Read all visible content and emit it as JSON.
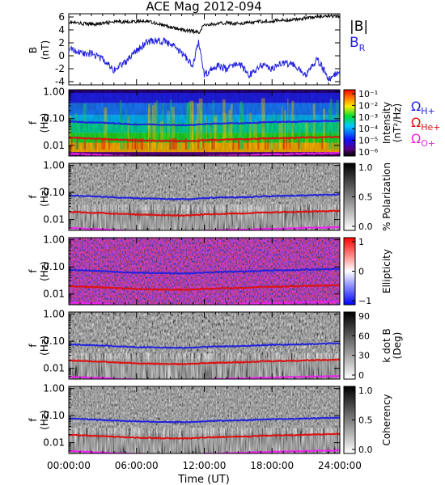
{
  "title": "ACE Mag 2012-094",
  "colors": {
    "black": "#000000",
    "blue": "#2222dd",
    "red": "#dd1111",
    "magenta": "#ee22ee"
  },
  "chart_data": [
    {
      "type": "line",
      "panel": "B",
      "ylabel": "B",
      "yunit": "(nT)",
      "ylim": [
        -4.5,
        6.5
      ],
      "yticks": [
        -4,
        -2,
        0,
        2,
        4,
        6
      ],
      "x": [
        0,
        1,
        2,
        3,
        4,
        5,
        6,
        7,
        8,
        9,
        10,
        11,
        11.5,
        12,
        13,
        14,
        15,
        16,
        17,
        18,
        19,
        20,
        21,
        22,
        23,
        24
      ],
      "series": [
        {
          "name": "|B|",
          "color": "#000000",
          "values": [
            5.2,
            5.0,
            4.9,
            5.0,
            5.2,
            5.3,
            5.3,
            5.4,
            4.9,
            4.4,
            4.0,
            3.8,
            3.6,
            4.8,
            4.9,
            5.1,
            5.0,
            5.1,
            5.3,
            5.4,
            5.5,
            5.6,
            5.9,
            6.0,
            6.1,
            6.1
          ]
        },
        {
          "name": "B_R",
          "color": "#2222dd",
          "values": [
            1.0,
            0.5,
            0.3,
            -0.5,
            -2.2,
            -1.0,
            0.8,
            2.2,
            2.4,
            1.8,
            0.5,
            -1.5,
            2.3,
            -3.0,
            -1.5,
            -2.0,
            -1.0,
            -3.0,
            -1.5,
            -2.0,
            -1.0,
            -1.5,
            -3.0,
            -0.5,
            -3.5,
            -2.5
          ]
        }
      ]
    },
    {
      "type": "heatmap",
      "panel": "Intensity",
      "ylabel": "f",
      "yunit": "(Hz)",
      "colorbar_label": "Intensity",
      "colorbar_unit": "(nT²/Hz)",
      "colorbar_ticks": [
        "10⁻¹",
        "10⁻²",
        "10⁻³",
        "10⁻⁴",
        "10⁻⁵",
        "10⁻⁶"
      ]
    },
    {
      "type": "heatmap",
      "panel": "Polarization",
      "ylabel": "f",
      "yunit": "(Hz)",
      "colorbar_label": "% Polarization",
      "colorbar_ticks": [
        "1.0",
        "0.5",
        "0.0"
      ]
    },
    {
      "type": "heatmap",
      "panel": "Ellipticity",
      "ylabel": "f",
      "yunit": "(Hz)",
      "colorbar_label": "Ellipticity",
      "colorbar_ticks": [
        "1",
        "0",
        "−1"
      ]
    },
    {
      "type": "heatmap",
      "panel": "k dot B",
      "ylabel": "f",
      "yunit": "(Hz)",
      "colorbar_label": "k dot B",
      "colorbar_unit": "(Deg)",
      "colorbar_ticks": [
        "90",
        "60",
        "30",
        "0"
      ]
    },
    {
      "type": "heatmap",
      "panel": "Coherency",
      "ylabel": "f",
      "yunit": "(Hz)",
      "colorbar_label": "Coherency",
      "colorbar_ticks": [
        "1.0",
        "0.5",
        "0.0"
      ]
    }
  ],
  "frequency_axis": {
    "scale": "log",
    "ylim": [
      0.004,
      1.2
    ],
    "tick_labels": [
      "1.00",
      "0.10",
      "0.01"
    ]
  },
  "gyrofrequencies": [
    {
      "name": "ΩH+",
      "symbol": "Ω",
      "sub": "H+",
      "color": "#2222dd",
      "values_hz": [
        0.078,
        0.075,
        0.072,
        0.07,
        0.066,
        0.063,
        0.061,
        0.06,
        0.059,
        0.058,
        0.057,
        0.058,
        0.062,
        0.064,
        0.066,
        0.067,
        0.068,
        0.072,
        0.074,
        0.075,
        0.076,
        0.079,
        0.08,
        0.082,
        0.084
      ]
    },
    {
      "name": "ΩHe+",
      "symbol": "Ω",
      "sub": "He+",
      "color": "#dd1111",
      "values_hz": [
        0.0195,
        0.0188,
        0.018,
        0.0175,
        0.0165,
        0.016,
        0.0153,
        0.015,
        0.0148,
        0.0145,
        0.0143,
        0.0145,
        0.0155,
        0.016,
        0.0165,
        0.0168,
        0.017,
        0.018,
        0.0185,
        0.0188,
        0.019,
        0.0198,
        0.02,
        0.0205,
        0.021
      ]
    },
    {
      "name": "ΩO+",
      "symbol": "Ω",
      "sub": "O+",
      "color": "#ee22ee",
      "values_hz": [
        0.0049,
        0.0047,
        0.0045,
        0.0044,
        0.0041,
        0.004,
        0.0038,
        0.0038,
        0.0037,
        0.0036,
        0.0036,
        0.0036,
        0.0039,
        0.004,
        0.0041,
        0.0042,
        0.0043,
        0.0045,
        0.0046,
        0.0047,
        0.0048,
        0.0049,
        0.005,
        0.0051,
        0.0052
      ]
    }
  ],
  "x_axis": {
    "label": "Time (UT)",
    "xlim": [
      0,
      24
    ],
    "tick_labels": [
      "00:00:00",
      "06:00:00",
      "12:00:00",
      "18:00:00",
      "24:00:00"
    ]
  }
}
